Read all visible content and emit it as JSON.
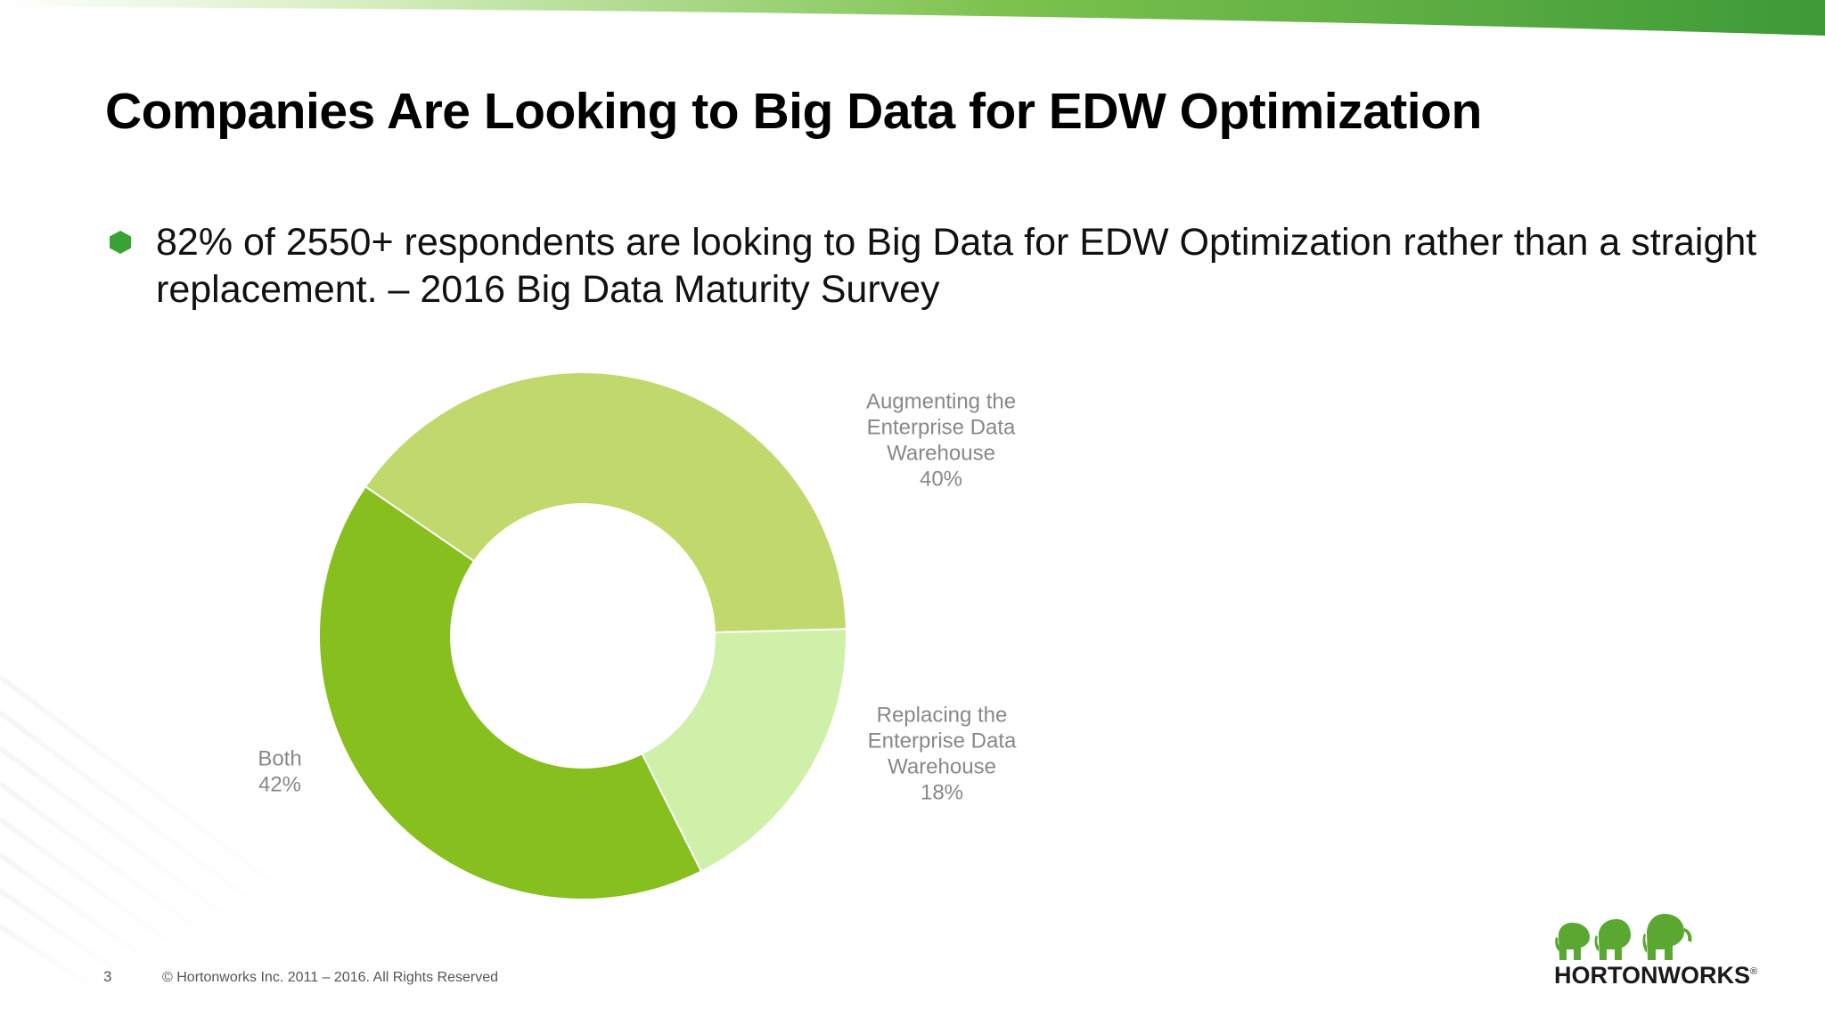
{
  "slide": {
    "title": "Companies Are Looking to Big Data for EDW Optimization",
    "bullet": "82% of 2550+ respondents are looking to Big Data for EDW Optimization rather than a straight replacement. – 2016 Big Data Maturity Survey",
    "page_number": "3",
    "copyright": "© Hortonworks Inc. 2011 – 2016. All Rights Reserved",
    "logo_text": "HORTONWORKS",
    "logo_mark": "®"
  },
  "colors": {
    "bullet": "#3aa335",
    "top_bar_start": "#d6eec0",
    "top_bar_end": "#3d9a37"
  },
  "chart_data": {
    "type": "pie",
    "variant": "donut",
    "title": "",
    "slices": [
      {
        "label_lines": [
          "Augmenting the",
          "Enterprise Data",
          "Warehouse"
        ],
        "percent_label": "40%",
        "value": 40,
        "color": "#c0d86c"
      },
      {
        "label_lines": [
          "Replacing the",
          "Enterprise Data",
          "Warehouse"
        ],
        "percent_label": "18%",
        "value": 18,
        "color": "#cef0a9"
      },
      {
        "label_lines": [
          "Both"
        ],
        "percent_label": "42%",
        "value": 42,
        "color": "#87bf1f"
      }
    ],
    "label_placement": [
      "right-top",
      "right-bottom",
      "left"
    ]
  }
}
